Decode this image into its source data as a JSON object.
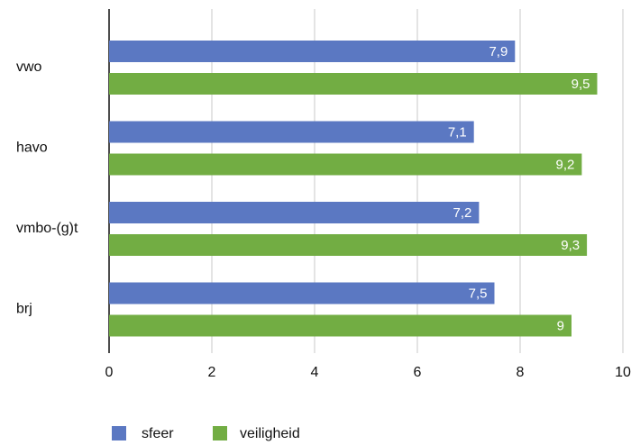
{
  "chart_data": {
    "type": "bar",
    "orientation": "horizontal",
    "categories": [
      "vwo",
      "havo",
      "vmbo-(g)t",
      "brj"
    ],
    "series": [
      {
        "name": "sfeer",
        "color": "#5b78c2",
        "values": [
          7.9,
          7.1,
          7.2,
          7.5
        ],
        "value_labels": [
          "7,9",
          "7,1",
          "7,2",
          "7,5"
        ]
      },
      {
        "name": "veiligheid",
        "color": "#72ad43",
        "values": [
          9.5,
          9.2,
          9.3,
          9
        ],
        "value_labels": [
          "9,5",
          "9,2",
          "9,3",
          "9"
        ]
      }
    ],
    "xlim": [
      0,
      10
    ],
    "xticks": [
      0,
      2,
      4,
      6,
      8,
      10
    ],
    "grid": true,
    "legend": "bottom"
  }
}
